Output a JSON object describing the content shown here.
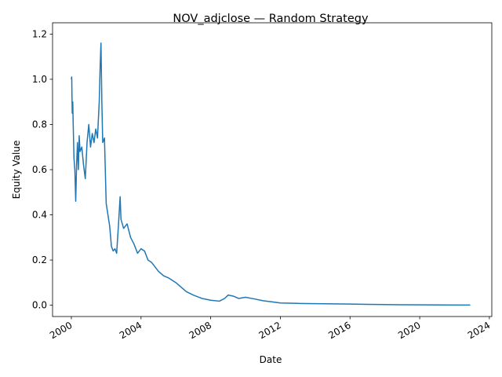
{
  "chart_data": {
    "type": "line",
    "title": "NOV_adjclose — Random Strategy",
    "x_label": "Date",
    "y_label": "Equity Value",
    "x": [
      2000.0,
      2000.02,
      2000.05,
      2000.08,
      2000.1,
      2000.15,
      2000.2,
      2000.25,
      2000.3,
      2000.35,
      2000.4,
      2000.45,
      2000.5,
      2000.6,
      2000.7,
      2000.8,
      2000.9,
      2001.0,
      2001.1,
      2001.2,
      2001.3,
      2001.4,
      2001.5,
      2001.6,
      2001.65,
      2001.7,
      2001.75,
      2001.8,
      2001.9,
      2002.0,
      2002.1,
      2002.2,
      2002.3,
      2002.4,
      2002.5,
      2002.6,
      2002.7,
      2002.8,
      2002.85,
      2003.0,
      2003.2,
      2003.4,
      2003.6,
      2003.8,
      2004.0,
      2004.2,
      2004.4,
      2004.6,
      2004.8,
      2005.0,
      2005.3,
      2005.6,
      2006.0,
      2006.3,
      2006.6,
      2007.0,
      2007.5,
      2008.0,
      2008.5,
      2008.8,
      2009.0,
      2009.3,
      2009.6,
      2010.0,
      2010.5,
      2011.0,
      2011.5,
      2012.0,
      2013.0,
      2014.0,
      2015.0,
      2016.0,
      2017.0,
      2018.0,
      2019.0,
      2020.0,
      2021.0,
      2022.0,
      2022.9
    ],
    "series": [
      {
        "name": "Equity Value",
        "color": "#1f77b4",
        "values": [
          1.0,
          1.01,
          0.85,
          0.9,
          0.82,
          0.65,
          0.6,
          0.46,
          0.62,
          0.72,
          0.6,
          0.75,
          0.68,
          0.7,
          0.62,
          0.56,
          0.72,
          0.8,
          0.7,
          0.76,
          0.72,
          0.78,
          0.74,
          0.9,
          1.05,
          1.16,
          0.9,
          0.72,
          0.74,
          0.45,
          0.4,
          0.35,
          0.26,
          0.24,
          0.25,
          0.23,
          0.35,
          0.48,
          0.38,
          0.34,
          0.36,
          0.3,
          0.27,
          0.23,
          0.25,
          0.24,
          0.2,
          0.19,
          0.17,
          0.15,
          0.13,
          0.12,
          0.1,
          0.08,
          0.06,
          0.045,
          0.03,
          0.022,
          0.018,
          0.03,
          0.045,
          0.04,
          0.03,
          0.035,
          0.028,
          0.02,
          0.015,
          0.01,
          0.008,
          0.007,
          0.006,
          0.005,
          0.004,
          0.003,
          0.002,
          0.0015,
          0.0012,
          0.001,
          0.001
        ]
      }
    ],
    "xlim": [
      1998.92,
      2024.14
    ],
    "xticks": [
      2000,
      2004,
      2008,
      2012,
      2016,
      2020,
      2024
    ],
    "ylim": [
      -0.05,
      1.25
    ],
    "yticks": [
      {
        "value": 0,
        "label": "0.0"
      },
      {
        "value": 0.2,
        "label": "0.2"
      },
      {
        "value": 0.4,
        "label": "0.4"
      },
      {
        "value": 0.6,
        "label": "0.6"
      },
      {
        "value": 0.8,
        "label": "0.8"
      },
      {
        "value": 1,
        "label": "1.0"
      },
      {
        "value": 1.2,
        "label": "1.2"
      }
    ]
  }
}
